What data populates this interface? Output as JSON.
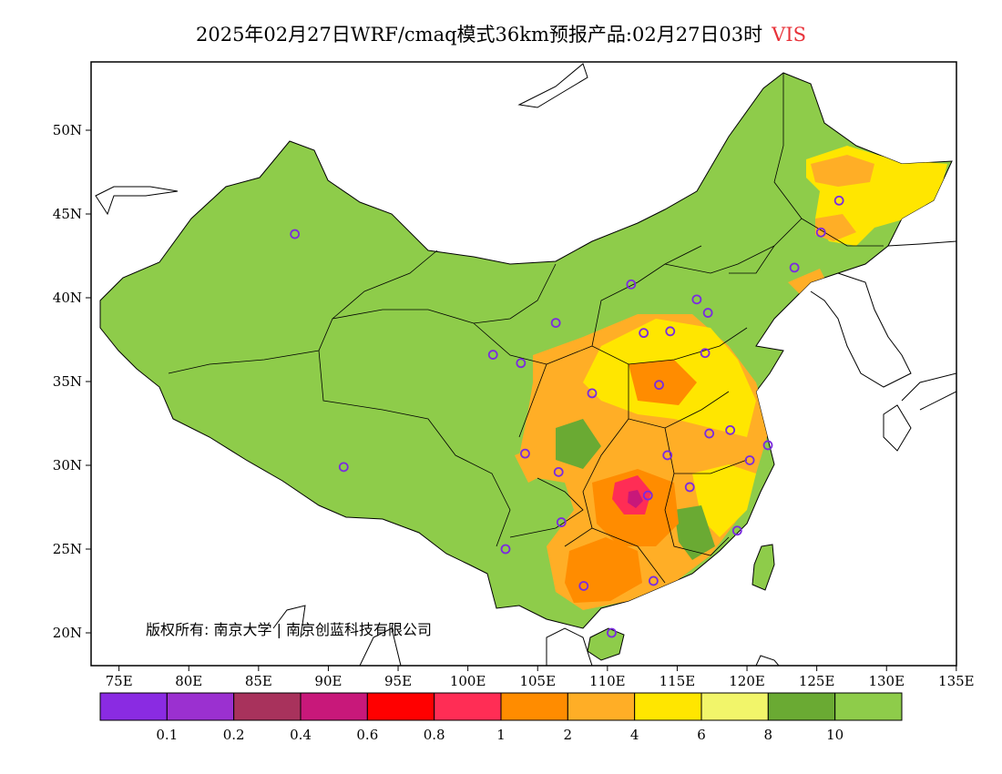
{
  "header": {
    "title": "2025年02月27日WRF/cmaq模式36km预报产品:02月27日03时",
    "variable": "VIS"
  },
  "map": {
    "lat_labels": [
      "50N",
      "45N",
      "40N",
      "35N",
      "30N",
      "25N",
      "20N"
    ],
    "lon_labels": [
      "75E",
      "80E",
      "85E",
      "90E",
      "95E",
      "100E",
      "105E",
      "110E",
      "115E",
      "120E",
      "125E",
      "130E",
      "135E"
    ],
    "copyright": "版权所有: 南京大学 | 南京创蓝科技有限公司",
    "colors": {
      "background": "#8ecc4a",
      "ocean": "#ffffff",
      "border": "#000000",
      "station_marker": "#7a2be0"
    },
    "stations": [
      {
        "lon": 87.6,
        "lat": 43.8
      },
      {
        "lon": 91.1,
        "lat": 29.9
      },
      {
        "lon": 101.8,
        "lat": 36.6
      },
      {
        "lon": 103.8,
        "lat": 36.1
      },
      {
        "lon": 106.3,
        "lat": 38.5
      },
      {
        "lon": 111.7,
        "lat": 40.8
      },
      {
        "lon": 116.4,
        "lat": 39.9
      },
      {
        "lon": 117.2,
        "lat": 39.1
      },
      {
        "lon": 114.5,
        "lat": 38.0
      },
      {
        "lon": 112.6,
        "lat": 37.9
      },
      {
        "lon": 117.0,
        "lat": 36.7
      },
      {
        "lon": 113.7,
        "lat": 34.8
      },
      {
        "lon": 108.9,
        "lat": 34.3
      },
      {
        "lon": 117.3,
        "lat": 31.9
      },
      {
        "lon": 118.8,
        "lat": 32.1
      },
      {
        "lon": 121.5,
        "lat": 31.2
      },
      {
        "lon": 120.2,
        "lat": 30.3
      },
      {
        "lon": 114.3,
        "lat": 30.6
      },
      {
        "lon": 106.5,
        "lat": 29.6
      },
      {
        "lon": 104.1,
        "lat": 30.7
      },
      {
        "lon": 112.9,
        "lat": 28.2
      },
      {
        "lon": 115.9,
        "lat": 28.7
      },
      {
        "lon": 106.7,
        "lat": 26.6
      },
      {
        "lon": 102.7,
        "lat": 25.0
      },
      {
        "lon": 119.3,
        "lat": 26.1
      },
      {
        "lon": 113.3,
        "lat": 23.1
      },
      {
        "lon": 108.3,
        "lat": 22.8
      },
      {
        "lon": 110.3,
        "lat": 20.0
      },
      {
        "lon": 123.4,
        "lat": 41.8
      },
      {
        "lon": 125.3,
        "lat": 43.9
      },
      {
        "lon": 126.6,
        "lat": 45.8
      }
    ]
  },
  "legend": {
    "colors": [
      "#8a2be2",
      "#9b30d0",
      "#a8325c",
      "#c8187a",
      "#ff0000",
      "#ff2d55",
      "#ff8c00",
      "#ffae26",
      "#ffe600",
      "#f2f56a",
      "#6aaa33",
      "#8ecc4a"
    ],
    "labels": [
      "0.1",
      "0.2",
      "0.4",
      "0.6",
      "0.8",
      "1",
      "2",
      "4",
      "6",
      "8",
      "10"
    ]
  }
}
